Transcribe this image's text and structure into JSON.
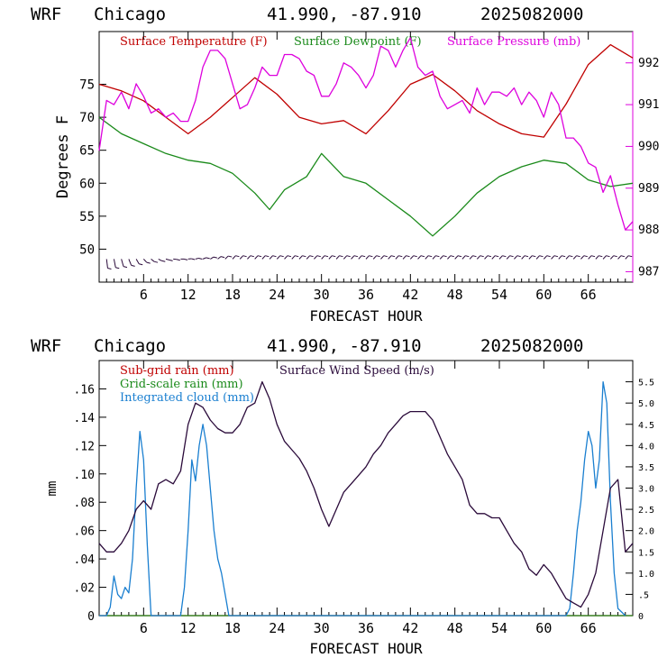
{
  "colors": {
    "temperature": "#c00000",
    "dewpoint": "#1a8a1a",
    "pressure": "#dd00dd",
    "wind_speed": "#2a0a3a",
    "cloud": "#1a7fd0",
    "axis": "#000000"
  },
  "panels": [
    {
      "header": {
        "model": "WRF",
        "location": "Chicago",
        "coords": "41.990, -87.910",
        "init": "2025082000"
      },
      "xlabel": "FORECAST HOUR",
      "ylabel_left": "Degrees F",
      "legend": [
        "Surface Temperature (F)",
        "Surface Dewpoint (F)",
        "Surface Pressure (mb)"
      ]
    },
    {
      "header": {
        "model": "WRF",
        "location": "Chicago",
        "coords": "41.990, -87.910",
        "init": "2025082000"
      },
      "xlabel": "FORECAST HOUR",
      "ylabel_left": "mm",
      "legend": [
        "Sub-grid rain (mm)",
        "Grid-scale rain (mm)",
        "Integrated cloud (mm)",
        "Surface Wind Speed (m/s)"
      ]
    }
  ],
  "chart_data": [
    {
      "type": "line",
      "xlabel": "FORECAST HOUR",
      "ylabel": "Degrees F",
      "y2label": "",
      "xlim": [
        0,
        72
      ],
      "ylim": [
        45,
        83
      ],
      "y2lim": [
        986.75,
        992.75
      ],
      "xticks": [
        "6",
        "12",
        "18",
        "24",
        "30",
        "36",
        "42",
        "48",
        "54",
        "60",
        "66"
      ],
      "yticks_left": [
        "50",
        "55",
        "60",
        "65",
        "70",
        "75"
      ],
      "yticks_right": [
        "987",
        "988",
        "989",
        "990",
        "991",
        "992"
      ],
      "grid": false,
      "legend_position": "top",
      "series": [
        {
          "name": "Surface Temperature (F)",
          "axis": "left",
          "color": "#c00000",
          "x": [
            0,
            3,
            6,
            9,
            12,
            15,
            18,
            21,
            24,
            27,
            30,
            33,
            36,
            39,
            42,
            45,
            48,
            51,
            54,
            57,
            60,
            63,
            66,
            69,
            72
          ],
          "y": [
            75,
            74,
            72.5,
            70,
            67.5,
            70,
            73,
            76,
            73.5,
            70,
            69,
            69.5,
            67.5,
            71,
            75,
            76.5,
            74,
            71,
            69,
            67.5,
            67,
            72,
            78,
            81,
            79
          ]
        },
        {
          "name": "Surface Dewpoint (F)",
          "axis": "left",
          "color": "#1a8a1a",
          "x": [
            0,
            3,
            6,
            9,
            12,
            15,
            18,
            21,
            23,
            25,
            28,
            30,
            33,
            36,
            39,
            42,
            45,
            48,
            51,
            54,
            57,
            60,
            63,
            66,
            69,
            72
          ],
          "y": [
            70,
            67.5,
            66,
            64.5,
            63.5,
            63,
            61.5,
            58.5,
            56,
            59,
            61,
            64.5,
            61,
            60,
            57.5,
            55,
            52,
            55,
            58.5,
            61,
            62.5,
            63.5,
            63,
            60.5,
            59.5,
            60
          ]
        },
        {
          "name": "Surface Pressure (mb)",
          "axis": "right",
          "color": "#dd00dd",
          "x": [
            0,
            1,
            2,
            3,
            4,
            5,
            6,
            7,
            8,
            9,
            10,
            11,
            12,
            13,
            14,
            15,
            16,
            17,
            18,
            19,
            20,
            21,
            22,
            23,
            24,
            25,
            26,
            27,
            28,
            29,
            30,
            31,
            32,
            33,
            34,
            35,
            36,
            37,
            38,
            39,
            40,
            41,
            42,
            43,
            44,
            45,
            46,
            47,
            48,
            49,
            50,
            51,
            52,
            53,
            54,
            55,
            56,
            57,
            58,
            59,
            60,
            61,
            62,
            63,
            64,
            65,
            66,
            67,
            68,
            69,
            70,
            71,
            72
          ],
          "y": [
            989.9,
            991.1,
            991.0,
            991.3,
            990.9,
            991.5,
            991.2,
            990.8,
            990.9,
            990.7,
            990.8,
            990.6,
            990.6,
            991.1,
            991.9,
            992.3,
            992.3,
            992.1,
            991.5,
            990.9,
            991.0,
            991.4,
            991.9,
            991.7,
            991.7,
            992.2,
            992.2,
            992.1,
            991.8,
            991.7,
            991.2,
            991.2,
            991.5,
            992.0,
            991.9,
            991.7,
            991.4,
            991.7,
            992.4,
            992.3,
            991.9,
            992.3,
            992.6,
            991.9,
            991.7,
            991.8,
            991.2,
            990.9,
            991.0,
            991.1,
            990.8,
            991.4,
            991.0,
            991.3,
            991.3,
            991.2,
            991.4,
            991.0,
            991.3,
            991.1,
            990.7,
            991.3,
            991.0,
            990.2,
            990.2,
            990.0,
            989.6,
            989.5,
            988.9,
            989.3,
            988.6,
            988.0,
            988.2
          ]
        },
        {
          "name": "",
          "type": "wind_barbs",
          "axis": "left",
          "y_level": 48.5,
          "x": [
            1,
            2,
            3,
            4,
            5,
            6,
            7,
            8,
            9,
            10,
            11,
            12,
            13,
            14,
            15,
            16,
            17,
            18,
            19,
            20,
            21,
            22,
            23,
            24,
            25,
            26,
            27,
            28,
            29,
            30,
            31,
            32,
            33,
            34,
            35,
            36,
            37,
            38,
            39,
            40,
            41,
            42,
            43,
            44,
            45,
            46,
            47,
            48,
            49,
            50,
            51,
            52,
            53,
            54,
            55,
            56,
            57,
            58,
            59,
            60,
            61,
            62,
            63,
            64,
            65,
            66,
            67,
            68,
            69,
            70,
            71
          ],
          "angle_deg": [
            200,
            210,
            220,
            230,
            240,
            250,
            255,
            260,
            265,
            268,
            270,
            272,
            275,
            278,
            282,
            285,
            288,
            290,
            290,
            290,
            290,
            290,
            290,
            290,
            290,
            290,
            290,
            290,
            290,
            290,
            290,
            290,
            290,
            290,
            290,
            290,
            290,
            290,
            290,
            290,
            290,
            290,
            290,
            290,
            290,
            290,
            290,
            290,
            290,
            290,
            290,
            290,
            290,
            290,
            290,
            290,
            290,
            290,
            290,
            290,
            290,
            290,
            290,
            290,
            290,
            290,
            290,
            290,
            290,
            290,
            290
          ]
        }
      ]
    },
    {
      "type": "line",
      "xlabel": "FORECAST HOUR",
      "ylabel": "mm",
      "y2label": "",
      "xlim": [
        0,
        72
      ],
      "ylim": [
        0,
        0.18
      ],
      "y2lim": [
        0,
        6.0
      ],
      "xticks": [
        "6",
        "12",
        "18",
        "24",
        "30",
        "36",
        "42",
        "48",
        "54",
        "60",
        "66"
      ],
      "yticks_left": [
        "0",
        ".02",
        ".04",
        ".06",
        ".08",
        ".10",
        ".12",
        ".14",
        ".16"
      ],
      "yticks_right": [
        "0",
        ".5",
        "1.0",
        "1.5",
        "2.0",
        "2.5",
        "3.0",
        "3.5",
        "4.0",
        "4.5",
        "5.0",
        "5.5"
      ],
      "grid": false,
      "legend_position": "top",
      "series": [
        {
          "name": "Sub-grid rain (mm)",
          "axis": "left",
          "color": "#c00000",
          "x": [
            0,
            72
          ],
          "y": [
            0,
            0
          ]
        },
        {
          "name": "Grid-scale rain (mm)",
          "axis": "left",
          "color": "#1a8a1a",
          "x": [
            0,
            72
          ],
          "y": [
            0,
            0
          ]
        },
        {
          "name": "Integrated cloud (mm)",
          "axis": "left",
          "color": "#1a7fd0",
          "x": [
            0,
            1,
            1.5,
            2,
            2.5,
            3,
            3.5,
            4,
            4.5,
            5,
            5.5,
            6,
            6.5,
            7,
            11,
            11.5,
            12,
            12.5,
            13,
            13.5,
            14,
            14.5,
            15,
            15.5,
            16,
            16.5,
            17,
            17.5,
            63,
            63.5,
            64,
            64.5,
            65,
            65.5,
            66,
            66.5,
            67,
            67.5,
            68,
            68.5,
            69,
            69.5,
            70,
            71
          ],
          "y": [
            0,
            0,
            0.006,
            0.028,
            0.015,
            0.012,
            0.02,
            0.016,
            0.04,
            0.09,
            0.13,
            0.11,
            0.05,
            0,
            0,
            0.02,
            0.06,
            0.11,
            0.095,
            0.12,
            0.135,
            0.12,
            0.09,
            0.06,
            0.04,
            0.03,
            0.015,
            0,
            0,
            0.005,
            0.03,
            0.06,
            0.08,
            0.11,
            0.13,
            0.12,
            0.09,
            0.11,
            0.165,
            0.15,
            0.08,
            0.03,
            0.005,
            0
          ]
        },
        {
          "name": "Surface Wind Speed (m/s)",
          "axis": "right",
          "color": "#2a0a3a",
          "x": [
            0,
            1,
            2,
            3,
            4,
            5,
            6,
            7,
            8,
            9,
            10,
            11,
            12,
            13,
            14,
            15,
            16,
            17,
            18,
            19,
            20,
            21,
            22,
            23,
            24,
            25,
            26,
            27,
            28,
            29,
            30,
            31,
            32,
            33,
            34,
            35,
            36,
            37,
            38,
            39,
            40,
            41,
            42,
            43,
            44,
            45,
            46,
            47,
            48,
            49,
            50,
            51,
            52,
            53,
            54,
            55,
            56,
            57,
            58,
            59,
            60,
            61,
            62,
            63,
            64,
            65,
            66,
            67,
            68,
            69,
            70,
            71,
            72
          ],
          "y": [
            1.7,
            1.5,
            1.5,
            1.7,
            2.0,
            2.5,
            2.7,
            2.5,
            3.1,
            3.2,
            3.1,
            3.4,
            4.5,
            5.0,
            4.9,
            4.6,
            4.4,
            4.3,
            4.3,
            4.5,
            4.9,
            5.0,
            5.5,
            5.1,
            4.5,
            4.1,
            3.9,
            3.7,
            3.4,
            3.0,
            2.5,
            2.1,
            2.5,
            2.9,
            3.1,
            3.3,
            3.5,
            3.8,
            4.0,
            4.3,
            4.5,
            4.7,
            4.8,
            4.8,
            4.8,
            4.6,
            4.2,
            3.8,
            3.5,
            3.2,
            2.6,
            2.4,
            2.4,
            2.3,
            2.3,
            2.0,
            1.7,
            1.5,
            1.1,
            0.95,
            1.2,
            1.0,
            0.7,
            0.4,
            0.3,
            0.2,
            0.5,
            1.0,
            2.0,
            3.0,
            3.2,
            1.5,
            1.7
          ]
        }
      ]
    }
  ]
}
